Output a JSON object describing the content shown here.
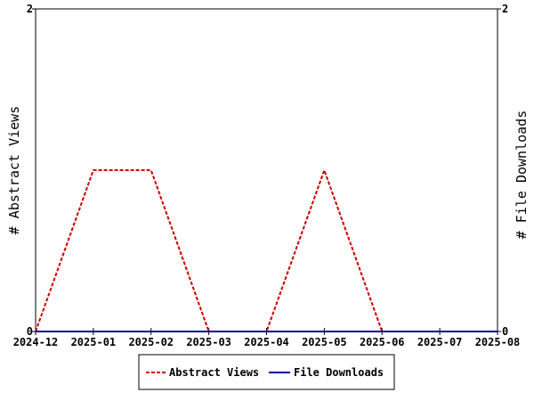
{
  "chart_data": {
    "type": "line",
    "title": "",
    "x": [
      "2024-12",
      "2025-01",
      "2025-02",
      "2025-03",
      "2025-04",
      "2025-05",
      "2025-06",
      "2025-07",
      "2025-08"
    ],
    "series": [
      {
        "name": "Abstract Views",
        "axis": "left",
        "color": "#cc0000",
        "line_style": "dashed",
        "values": [
          0,
          1,
          1,
          0,
          0,
          1,
          0,
          0,
          0
        ]
      },
      {
        "name": "File Downloads",
        "axis": "right",
        "color": "#000099",
        "line_style": "solid",
        "values": [
          0,
          0,
          0,
          0,
          0,
          0,
          0,
          0,
          0
        ]
      }
    ],
    "ylabel_left": "# Abstract Views",
    "ylabel_right": "# File Downloads",
    "ylim_left": [
      0,
      2
    ],
    "ylim_right": [
      0,
      2
    ],
    "yticks_left": [
      "0",
      "2"
    ],
    "yticks_right": [
      "0",
      "2"
    ],
    "grid": false,
    "legend_position": "bottom"
  }
}
